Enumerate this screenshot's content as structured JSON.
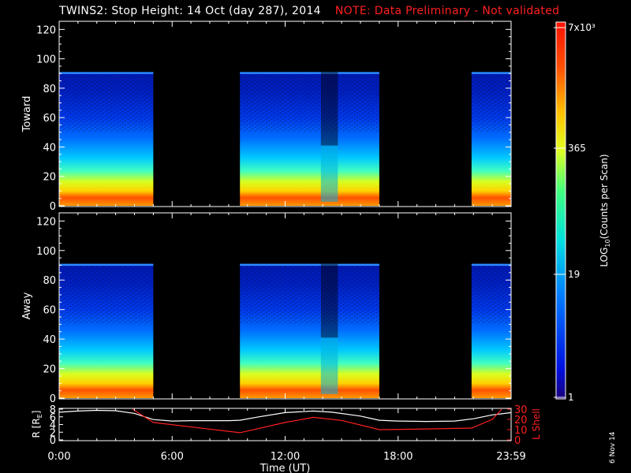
{
  "page": {
    "title": "TWINS2: Stop Height: 14 Oct (day 287), 2014",
    "note": "NOTE: Data Preliminary - Not validated",
    "date_stamp": "6 Nov 14"
  },
  "colors": {
    "note": "#ff2020",
    "r_line": "#ffffff",
    "lshell_line": "#ff2020",
    "background": "#000000"
  },
  "chart_data": [
    {
      "type": "heatmap",
      "ylabel": "Toward",
      "ylim": [
        0,
        125
      ],
      "yticks": [
        0,
        20,
        40,
        60,
        80,
        100,
        120
      ],
      "data_top": 91,
      "coverage_ut_hours": [
        [
          0,
          5
        ],
        [
          9.6,
          17
        ],
        [
          21.9,
          24
        ]
      ],
      "low_count_gap_ut_hours": [
        13.9,
        14.8
      ]
    },
    {
      "type": "heatmap",
      "ylabel": "Away",
      "ylim": [
        0,
        125
      ],
      "yticks": [
        0,
        20,
        40,
        60,
        80,
        100,
        120
      ],
      "data_top": 91,
      "coverage_ut_hours": [
        [
          0,
          5
        ],
        [
          9.6,
          17
        ],
        [
          21.9,
          24
        ]
      ],
      "low_count_gap_ut_hours": [
        13.9,
        14.8
      ]
    },
    {
      "type": "line",
      "xlabel": "Time (UT)",
      "xticks": [
        "0:00",
        "6:00",
        "12:00",
        "18:00",
        "23:59"
      ],
      "xlim": [
        0,
        24
      ],
      "left_axis": {
        "label": "R [RE]",
        "ylim": [
          0,
          8
        ],
        "yticks": [
          0,
          2,
          4,
          6,
          8
        ]
      },
      "right_axis": {
        "label": "L Shell",
        "ylim": [
          0,
          30
        ],
        "yticks": [
          0,
          10,
          20,
          30
        ]
      },
      "series": [
        {
          "axis": "left",
          "x": [
            0,
            1,
            2,
            3,
            4,
            5,
            6,
            7,
            8,
            9,
            9.6,
            10.5,
            12,
            13.5,
            14.5,
            16,
            17,
            18,
            19.5,
            21,
            22,
            23,
            24
          ],
          "y": [
            7.2,
            7.5,
            7.7,
            7.6,
            6.9,
            5.3,
            4.9,
            5.0,
            5.0,
            5.0,
            5.1,
            5.9,
            7.1,
            7.5,
            7.2,
            6.2,
            5.1,
            4.9,
            4.8,
            4.9,
            5.5,
            6.5,
            7.1
          ]
        },
        {
          "axis": "right",
          "x": [
            3.9,
            5,
            9.6,
            12,
            13.5,
            15,
            17,
            19,
            21.9,
            23,
            23.5
          ],
          "y": [
            30,
            17,
            7,
            17,
            22,
            19,
            10,
            10.5,
            11.5,
            20,
            30
          ]
        }
      ]
    },
    {
      "type": "heatmap",
      "colorbar": true,
      "label": "LOG10(Counts per Scan)",
      "ticks": [
        "1",
        "19",
        "365",
        "7x10³"
      ]
    }
  ],
  "labels": {
    "r_label": "R [R",
    "r_sub": "E",
    "r_close": "]",
    "lshell": "L Shell",
    "cb_log": "LOG",
    "cb_sub": "10",
    "cb_rest": "(Counts per Scan)"
  }
}
